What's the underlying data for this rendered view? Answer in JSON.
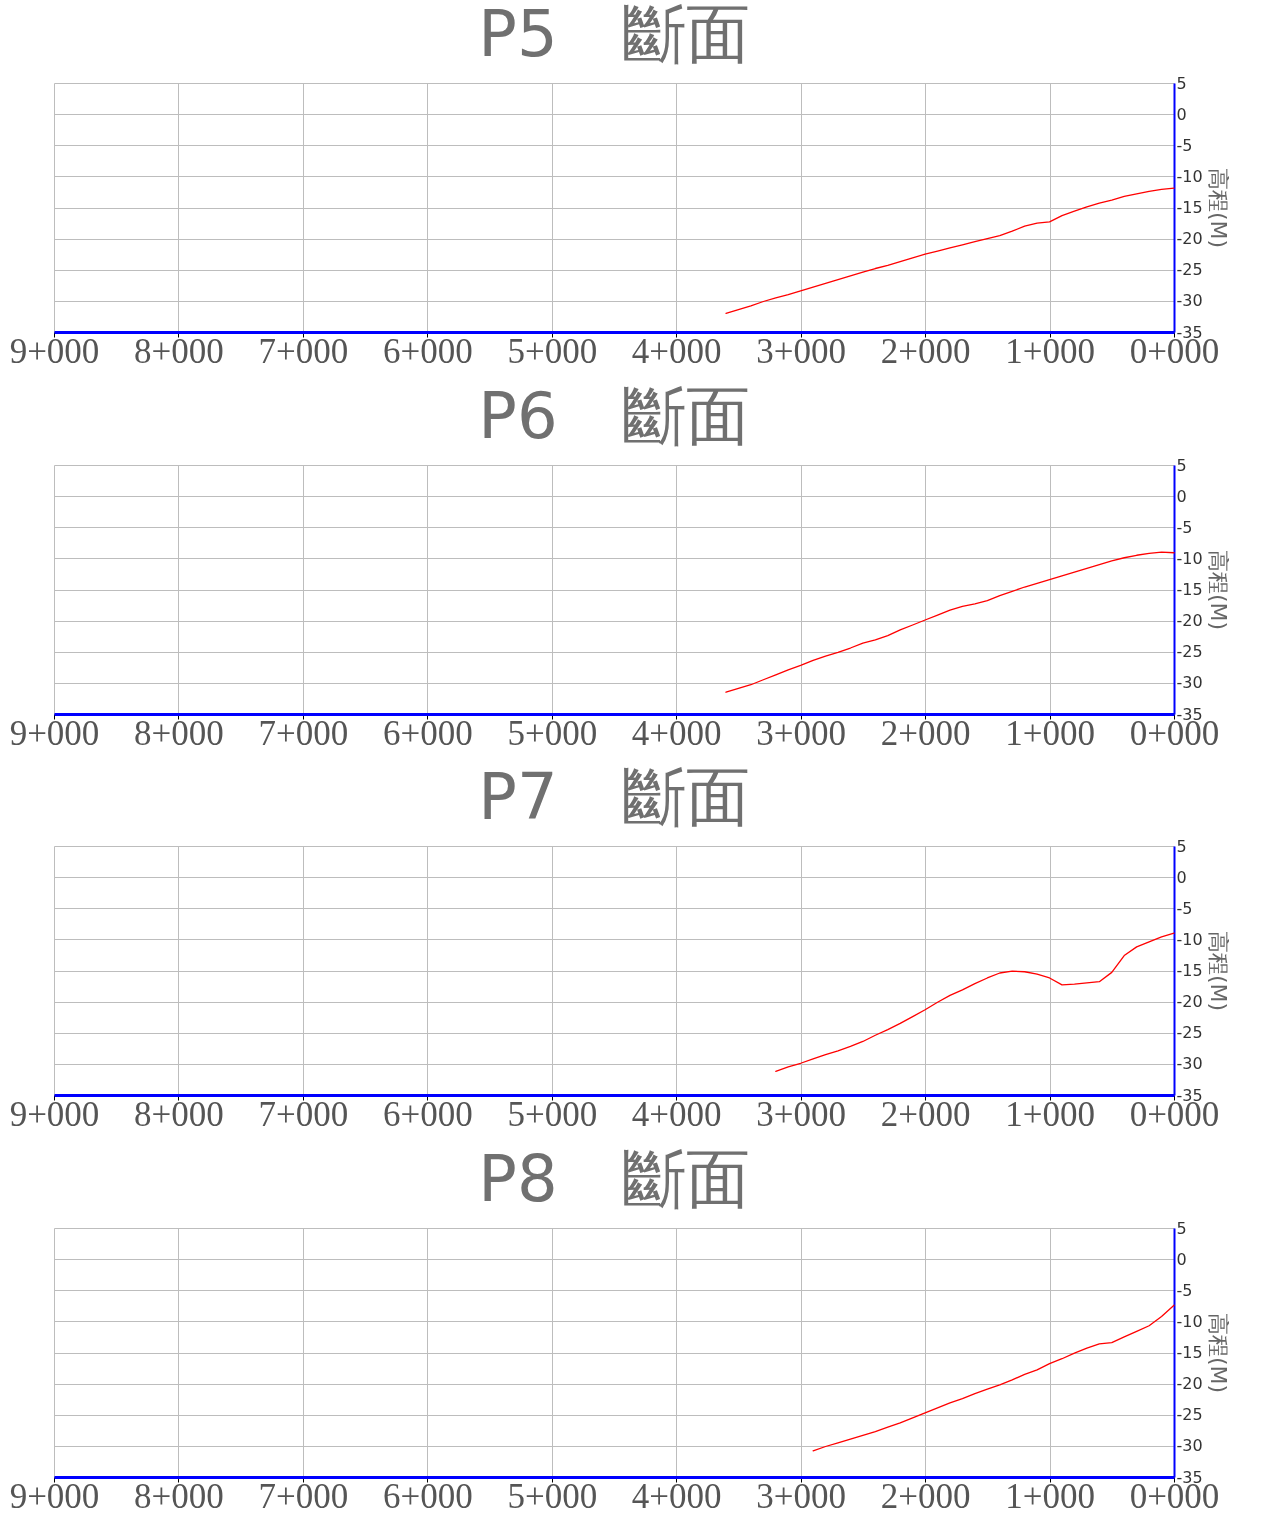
{
  "chart_data": [
    {
      "type": "line",
      "title": "P5　斷面",
      "ylabel": "高程(M)",
      "categories": [
        "9+000",
        null,
        null,
        null,
        null,
        null,
        null,
        null,
        null,
        null,
        "8+000",
        null,
        null,
        null,
        null,
        null,
        null,
        null,
        null,
        null,
        "7+000",
        null,
        null,
        null,
        null,
        null,
        null,
        null,
        null,
        null,
        "6+000",
        null,
        null,
        null,
        null,
        null,
        null,
        null,
        null,
        null,
        "5+000",
        null,
        null,
        null,
        null,
        null,
        null,
        null,
        null,
        null,
        "4+000",
        null,
        null,
        null,
        null,
        null,
        null,
        null,
        null,
        null,
        "3+000",
        null,
        null,
        null,
        null,
        null,
        null,
        null,
        null,
        null,
        "2+000",
        null,
        null,
        null,
        null,
        null,
        null,
        null,
        null,
        null,
        "1+000",
        null,
        null,
        null,
        null,
        null,
        null,
        null,
        null,
        null,
        "0+000"
      ],
      "ylim": [
        -35,
        5
      ],
      "yticks": [
        5,
        0,
        -5,
        -10,
        -15,
        -20,
        -25,
        -30,
        -35
      ],
      "grid": true,
      "series": [
        {
          "color": "#ff0000",
          "values": [
            null,
            null,
            null,
            null,
            null,
            null,
            null,
            null,
            null,
            null,
            null,
            null,
            null,
            null,
            null,
            null,
            null,
            null,
            null,
            null,
            null,
            null,
            null,
            null,
            null,
            null,
            null,
            null,
            null,
            null,
            null,
            null,
            null,
            null,
            null,
            null,
            null,
            null,
            null,
            null,
            null,
            null,
            null,
            null,
            null,
            null,
            null,
            null,
            null,
            null,
            null,
            null,
            null,
            null,
            -32.0,
            -31.4,
            -30.8,
            -30.1,
            -29.5,
            -29.0,
            -28.4,
            -27.8,
            -27.2,
            -26.6,
            -26.0,
            -25.4,
            -24.8,
            -24.3,
            -23.7,
            -23.1,
            -22.5,
            -22.0,
            -21.5,
            -21.0,
            -20.5,
            -20.0,
            -19.5,
            -18.8,
            -18.0,
            -17.5,
            -17.3,
            -16.3,
            -15.6,
            -14.9,
            -14.3,
            -13.8,
            -13.2,
            -12.8,
            -12.4,
            -12.1,
            -11.9
          ]
        }
      ]
    },
    {
      "type": "line",
      "title": "P6　斷面",
      "ylabel": "高程(M)",
      "categories": [
        "9+000",
        null,
        null,
        null,
        null,
        null,
        null,
        null,
        null,
        null,
        "8+000",
        null,
        null,
        null,
        null,
        null,
        null,
        null,
        null,
        null,
        "7+000",
        null,
        null,
        null,
        null,
        null,
        null,
        null,
        null,
        null,
        "6+000",
        null,
        null,
        null,
        null,
        null,
        null,
        null,
        null,
        null,
        "5+000",
        null,
        null,
        null,
        null,
        null,
        null,
        null,
        null,
        null,
        "4+000",
        null,
        null,
        null,
        null,
        null,
        null,
        null,
        null,
        null,
        "3+000",
        null,
        null,
        null,
        null,
        null,
        null,
        null,
        null,
        null,
        "2+000",
        null,
        null,
        null,
        null,
        null,
        null,
        null,
        null,
        null,
        "1+000",
        null,
        null,
        null,
        null,
        null,
        null,
        null,
        null,
        null,
        "0+000"
      ],
      "ylim": [
        -35,
        5
      ],
      "yticks": [
        5,
        0,
        -5,
        -10,
        -15,
        -20,
        -25,
        -30,
        -35
      ],
      "grid": true,
      "series": [
        {
          "color": "#ff0000",
          "values": [
            null,
            null,
            null,
            null,
            null,
            null,
            null,
            null,
            null,
            null,
            null,
            null,
            null,
            null,
            null,
            null,
            null,
            null,
            null,
            null,
            null,
            null,
            null,
            null,
            null,
            null,
            null,
            null,
            null,
            null,
            null,
            null,
            null,
            null,
            null,
            null,
            null,
            null,
            null,
            null,
            null,
            null,
            null,
            null,
            null,
            null,
            null,
            null,
            null,
            null,
            null,
            null,
            null,
            null,
            -31.5,
            -30.9,
            -30.3,
            -29.5,
            -28.7,
            -27.9,
            -27.2,
            -26.4,
            -25.7,
            -25.1,
            -24.4,
            -23.6,
            -23.1,
            -22.4,
            -21.5,
            -20.7,
            -19.9,
            -19.1,
            -18.3,
            -17.7,
            -17.3,
            -16.8,
            -16.0,
            -15.3,
            -14.6,
            -14.0,
            -13.4,
            -12.8,
            -12.2,
            -11.6,
            -11.0,
            -10.4,
            -9.9,
            -9.5,
            -9.2,
            -9.0,
            -9.1
          ]
        }
      ]
    },
    {
      "type": "line",
      "title": "P7　斷面",
      "ylabel": "高程(M)",
      "categories": [
        "9+000",
        null,
        null,
        null,
        null,
        null,
        null,
        null,
        null,
        null,
        "8+000",
        null,
        null,
        null,
        null,
        null,
        null,
        null,
        null,
        null,
        "7+000",
        null,
        null,
        null,
        null,
        null,
        null,
        null,
        null,
        null,
        "6+000",
        null,
        null,
        null,
        null,
        null,
        null,
        null,
        null,
        null,
        "5+000",
        null,
        null,
        null,
        null,
        null,
        null,
        null,
        null,
        null,
        "4+000",
        null,
        null,
        null,
        null,
        null,
        null,
        null,
        null,
        null,
        "3+000",
        null,
        null,
        null,
        null,
        null,
        null,
        null,
        null,
        null,
        "2+000",
        null,
        null,
        null,
        null,
        null,
        null,
        null,
        null,
        null,
        "1+000",
        null,
        null,
        null,
        null,
        null,
        null,
        null,
        null,
        null,
        "0+000"
      ],
      "ylim": [
        -35,
        5
      ],
      "yticks": [
        5,
        0,
        -5,
        -10,
        -15,
        -20,
        -25,
        -30,
        -35
      ],
      "grid": true,
      "series": [
        {
          "color": "#ff0000",
          "values": [
            null,
            null,
            null,
            null,
            null,
            null,
            null,
            null,
            null,
            null,
            null,
            null,
            null,
            null,
            null,
            null,
            null,
            null,
            null,
            null,
            null,
            null,
            null,
            null,
            null,
            null,
            null,
            null,
            null,
            null,
            null,
            null,
            null,
            null,
            null,
            null,
            null,
            null,
            null,
            null,
            null,
            null,
            null,
            null,
            null,
            null,
            null,
            null,
            null,
            null,
            null,
            null,
            null,
            null,
            null,
            null,
            null,
            null,
            -31.2,
            -30.5,
            -29.9,
            -29.2,
            -28.5,
            -27.9,
            -27.2,
            -26.4,
            -25.4,
            -24.5,
            -23.5,
            -22.4,
            -21.3,
            -20.1,
            -19.0,
            -18.1,
            -17.1,
            -16.2,
            -15.4,
            -15.1,
            -15.2,
            -15.6,
            -16.2,
            -17.3,
            -17.2,
            -17.0,
            -16.8,
            -15.3,
            -12.6,
            -11.2,
            -10.4,
            -9.6,
            -9.0
          ]
        }
      ]
    },
    {
      "type": "line",
      "title": "P8　斷面",
      "ylabel": "高程(M)",
      "categories": [
        "9+000",
        null,
        null,
        null,
        null,
        null,
        null,
        null,
        null,
        null,
        "8+000",
        null,
        null,
        null,
        null,
        null,
        null,
        null,
        null,
        null,
        "7+000",
        null,
        null,
        null,
        null,
        null,
        null,
        null,
        null,
        null,
        "6+000",
        null,
        null,
        null,
        null,
        null,
        null,
        null,
        null,
        null,
        "5+000",
        null,
        null,
        null,
        null,
        null,
        null,
        null,
        null,
        null,
        "4+000",
        null,
        null,
        null,
        null,
        null,
        null,
        null,
        null,
        null,
        "3+000",
        null,
        null,
        null,
        null,
        null,
        null,
        null,
        null,
        null,
        "2+000",
        null,
        null,
        null,
        null,
        null,
        null,
        null,
        null,
        null,
        "1+000",
        null,
        null,
        null,
        null,
        null,
        null,
        null,
        null,
        null,
        "0+000"
      ],
      "ylim": [
        -35,
        5
      ],
      "yticks": [
        5,
        0,
        -5,
        -10,
        -15,
        -20,
        -25,
        -30,
        -35
      ],
      "grid": true,
      "series": [
        {
          "color": "#ff0000",
          "values": [
            null,
            null,
            null,
            null,
            null,
            null,
            null,
            null,
            null,
            null,
            null,
            null,
            null,
            null,
            null,
            null,
            null,
            null,
            null,
            null,
            null,
            null,
            null,
            null,
            null,
            null,
            null,
            null,
            null,
            null,
            null,
            null,
            null,
            null,
            null,
            null,
            null,
            null,
            null,
            null,
            null,
            null,
            null,
            null,
            null,
            null,
            null,
            null,
            null,
            null,
            null,
            null,
            null,
            null,
            null,
            null,
            null,
            null,
            null,
            null,
            null,
            -30.8,
            -30.1,
            -29.5,
            -28.9,
            -28.3,
            -27.7,
            -27.0,
            -26.3,
            -25.5,
            -24.7,
            -23.9,
            -23.1,
            -22.4,
            -21.6,
            -20.9,
            -20.2,
            -19.4,
            -18.5,
            -17.8,
            -16.8,
            -16.0,
            -15.1,
            -14.3,
            -13.6,
            -13.4,
            -12.5,
            -11.6,
            -10.7,
            -9.2,
            -7.4
          ]
        }
      ]
    }
  ]
}
